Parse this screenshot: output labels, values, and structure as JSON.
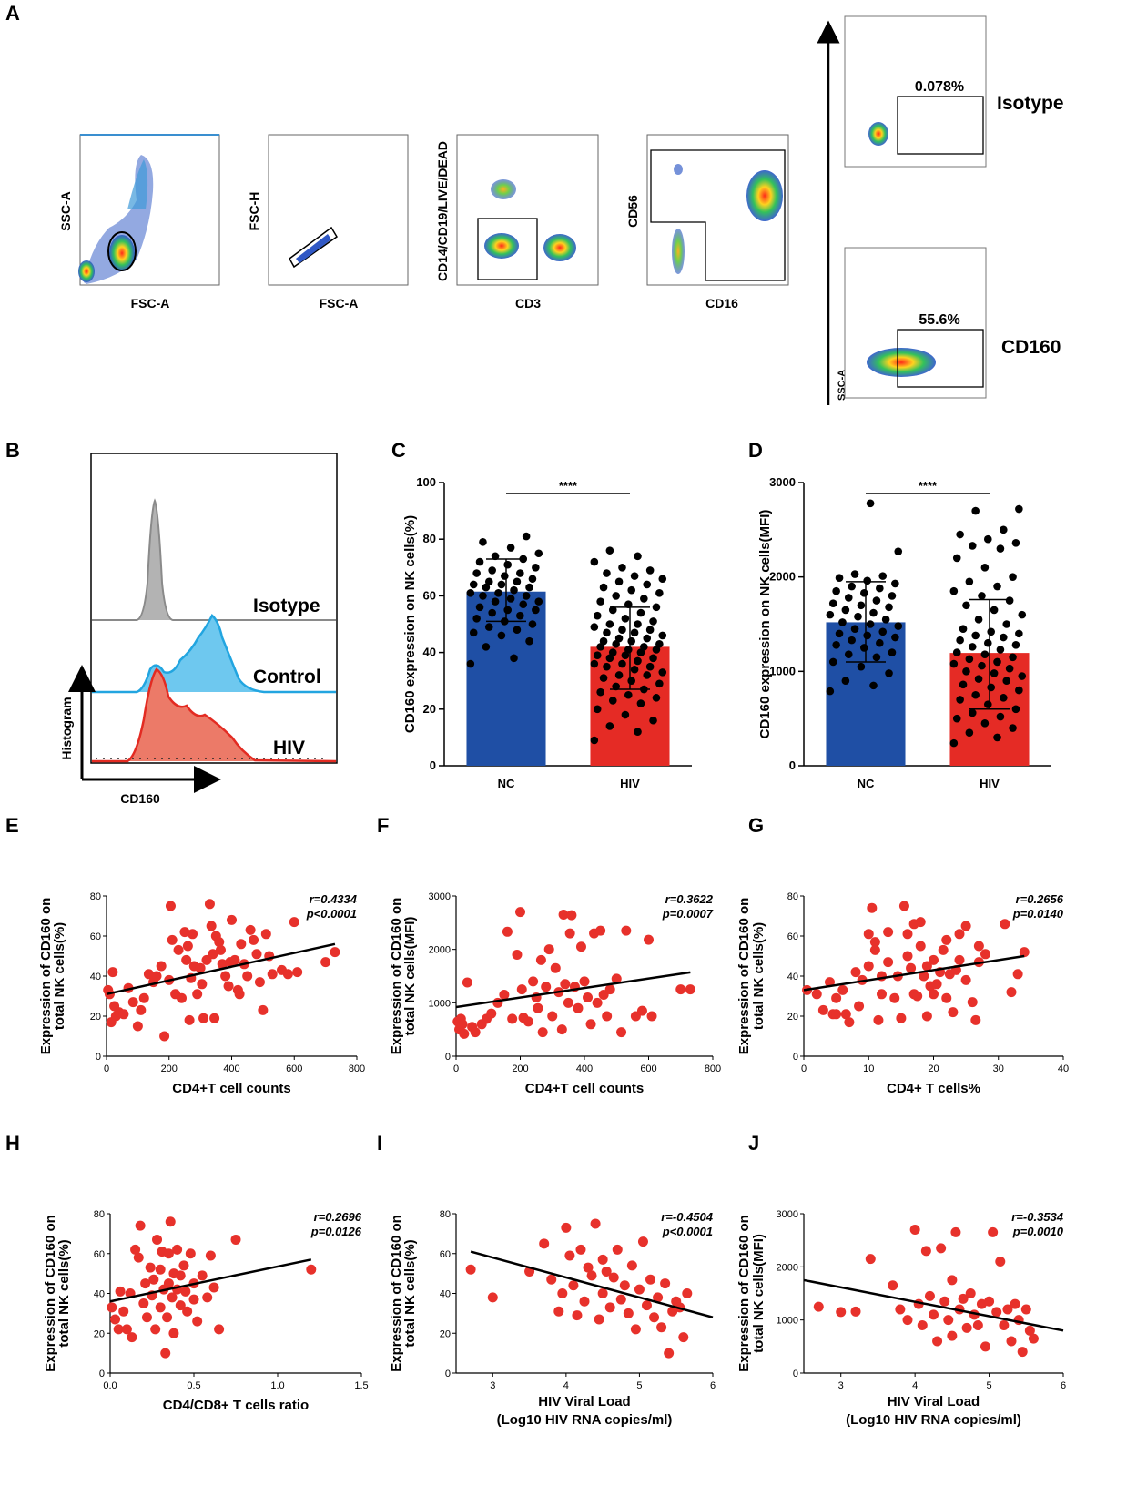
{
  "panel_labels": {
    "A": "A",
    "B": "B",
    "C": "C",
    "D": "D",
    "E": "E",
    "F": "F",
    "G": "G",
    "H": "H",
    "I": "I",
    "J": "J"
  },
  "flow": {
    "plots": [
      {
        "x_label": "FSC-A",
        "y_label": "SSC-A"
      },
      {
        "x_label": "FSC-A",
        "y_label": "FSC-H"
      },
      {
        "x_label": "CD3",
        "y_label": "CD14/CD19/LIVE/DEAD"
      },
      {
        "x_label": "CD16",
        "y_label": "CD56"
      }
    ],
    "gates": [
      {
        "name": "Isotype",
        "percent": "0.078%"
      },
      {
        "name": "CD160",
        "percent": "55.6%"
      }
    ],
    "ssc_label": "SSC-A"
  },
  "histogram": {
    "x_label": "CD160",
    "y_label": "Histogram",
    "tracks": [
      {
        "name": "Isotype",
        "color": "#9a9a9a"
      },
      {
        "name": "Control",
        "color": "#2aa7df"
      },
      {
        "name": "HIV",
        "color": "#e5493b"
      }
    ]
  },
  "chart_data": [
    {
      "id": "C",
      "type": "bar",
      "ylabel": "CD160 expression on NK cells(%)",
      "categories": [
        "NC",
        "HIV"
      ],
      "values": [
        61.5,
        42
      ],
      "sd_upper": [
        73,
        56
      ],
      "sd_lower": [
        51,
        27
      ],
      "ylim": [
        0,
        100
      ],
      "yticks": [
        0,
        20,
        40,
        60,
        80,
        100
      ],
      "significance": "****",
      "colors": [
        "#1f4fa5",
        "#e52b25"
      ],
      "points": [
        [
          36,
          38,
          42,
          44,
          46,
          47,
          48,
          49,
          50,
          51,
          52,
          53,
          54,
          55,
          55,
          56,
          57,
          58,
          58,
          59,
          60,
          60,
          61,
          61,
          62,
          63,
          63,
          64,
          64,
          65,
          65,
          66,
          67,
          68,
          68,
          69,
          70,
          71,
          72,
          73,
          74,
          75,
          77,
          79,
          81
        ],
        [
          9,
          12,
          14,
          16,
          18,
          20,
          22,
          23,
          24,
          25,
          26,
          27,
          28,
          29,
          30,
          31,
          32,
          32,
          33,
          34,
          35,
          35,
          36,
          36,
          37,
          38,
          38,
          39,
          39,
          40,
          40,
          41,
          41,
          42,
          42,
          43,
          43,
          44,
          44,
          45,
          45,
          46,
          47,
          47,
          48,
          48,
          49,
          50,
          50,
          51,
          52,
          53,
          54,
          55,
          56,
          57,
          58,
          59,
          60,
          61,
          62,
          63,
          64,
          65,
          66,
          67,
          68,
          69,
          70,
          72,
          74,
          76
        ]
      ]
    },
    {
      "id": "D",
      "type": "bar",
      "ylabel": "CD160 expression on NK cells(MFI)",
      "categories": [
        "NC",
        "HIV"
      ],
      "values": [
        1520,
        1195
      ],
      "sd_upper": [
        1950,
        1760
      ],
      "sd_lower": [
        1100,
        600
      ],
      "ylim": [
        0,
        3000
      ],
      "yticks": [
        0,
        1000,
        2000,
        3000
      ],
      "significance": "****",
      "colors": [
        "#1f4fa5",
        "#e52b25"
      ],
      "points": [
        [
          790,
          850,
          900,
          980,
          1050,
          1100,
          1150,
          1180,
          1200,
          1250,
          1280,
          1300,
          1330,
          1360,
          1380,
          1400,
          1420,
          1450,
          1480,
          1500,
          1520,
          1550,
          1580,
          1600,
          1620,
          1650,
          1680,
          1700,
          1720,
          1750,
          1780,
          1800,
          1830,
          1850,
          1880,
          1900,
          1930,
          1960,
          1990,
          2010,
          2030,
          2270,
          2780
        ],
        [
          240,
          300,
          350,
          400,
          450,
          500,
          520,
          560,
          600,
          650,
          700,
          720,
          750,
          800,
          830,
          860,
          900,
          920,
          950,
          980,
          1000,
          1030,
          1060,
          1080,
          1100,
          1130,
          1150,
          1180,
          1200,
          1230,
          1260,
          1280,
          1300,
          1330,
          1360,
          1380,
          1400,
          1420,
          1450,
          1500,
          1550,
          1600,
          1650,
          1700,
          1750,
          1800,
          1850,
          1900,
          1950,
          2000,
          2100,
          2200,
          2300,
          2330,
          2360,
          2400,
          2450,
          2500,
          2700,
          2720
        ]
      ]
    },
    {
      "id": "E",
      "type": "scatter",
      "xlabel": "CD4+T cell counts",
      "ylabel": [
        "Expression of CD160 on",
        "total NK cells(%)"
      ],
      "xlim": [
        0,
        800
      ],
      "ylim": [
        0,
        80
      ],
      "xticks": [
        0,
        200,
        400,
        600,
        800
      ],
      "yticks": [
        0,
        20,
        40,
        60,
        80
      ],
      "r": "r=0.4334",
      "p": "p<0.0001",
      "fit": [
        [
          0,
          31
        ],
        [
          730,
          56
        ]
      ],
      "x": [
        5,
        10,
        15,
        20,
        25,
        30,
        40,
        55,
        70,
        85,
        100,
        110,
        120,
        135,
        150,
        160,
        175,
        185,
        200,
        205,
        210,
        220,
        230,
        240,
        250,
        255,
        260,
        265,
        270,
        275,
        280,
        290,
        300,
        305,
        310,
        320,
        330,
        335,
        340,
        345,
        350,
        360,
        365,
        370,
        380,
        390,
        395,
        400,
        410,
        420,
        425,
        430,
        440,
        450,
        460,
        470,
        480,
        490,
        500,
        510,
        520,
        530,
        560,
        580,
        600,
        610,
        700,
        730
      ],
      "y": [
        33,
        31,
        17,
        42,
        25,
        20,
        22,
        21,
        34,
        27,
        15,
        23,
        29,
        41,
        37,
        40,
        45,
        10,
        38,
        75,
        58,
        31,
        53,
        29,
        62,
        48,
        55,
        18,
        39,
        61,
        45,
        31,
        44,
        36,
        19,
        48,
        76,
        65,
        51,
        19,
        60,
        57,
        53,
        46,
        40,
        35,
        47,
        68,
        48,
        33,
        31,
        56,
        46,
        40,
        63,
        58,
        51,
        37,
        23,
        61,
        50,
        41,
        43,
        41,
        67,
        42,
        47,
        52
      ]
    },
    {
      "id": "F",
      "type": "scatter",
      "xlabel": "CD4+T cell counts",
      "ylabel": [
        "Expression of CD160 on",
        "total NK cells(MFI)"
      ],
      "xlim": [
        0,
        800
      ],
      "ylim": [
        0,
        3000
      ],
      "xticks": [
        0,
        200,
        400,
        600,
        800
      ],
      "yticks": [
        0,
        1000,
        2000,
        3000
      ],
      "r": "r=0.3622",
      "p": "p=0.0007",
      "fit": [
        [
          0,
          920
        ],
        [
          730,
          1570
        ]
      ],
      "x": [
        5,
        10,
        15,
        20,
        25,
        35,
        50,
        60,
        80,
        95,
        110,
        130,
        150,
        160,
        175,
        190,
        200,
        205,
        210,
        225,
        240,
        250,
        255,
        265,
        270,
        280,
        290,
        300,
        310,
        320,
        330,
        335,
        340,
        350,
        355,
        360,
        370,
        380,
        390,
        400,
        410,
        420,
        430,
        440,
        450,
        460,
        470,
        480,
        500,
        515,
        530,
        560,
        580,
        600,
        610,
        700,
        730
      ],
      "y": [
        650,
        500,
        700,
        600,
        420,
        1380,
        550,
        450,
        600,
        700,
        800,
        1000,
        1150,
        2330,
        700,
        1900,
        2700,
        1250,
        720,
        650,
        1400,
        1100,
        900,
        1800,
        450,
        1300,
        2000,
        750,
        1650,
        1200,
        500,
        2650,
        1350,
        1000,
        2300,
        2640,
        1300,
        900,
        2050,
        1400,
        1100,
        600,
        2300,
        1000,
        2350,
        1150,
        750,
        1250,
        1450,
        450,
        2350,
        750,
        850,
        2180,
        750,
        1250,
        1250
      ]
    },
    {
      "id": "G",
      "type": "scatter",
      "xlabel": "CD4+ T cells%",
      "ylabel": [
        "Expression of CD160 on",
        "total NK cells(%)"
      ],
      "xlim": [
        0,
        40
      ],
      "ylim": [
        0,
        80
      ],
      "xticks": [
        0,
        10,
        20,
        30,
        40
      ],
      "yticks": [
        0,
        20,
        40,
        60,
        80
      ],
      "r": "r=0.2656",
      "p": "p=0.0140",
      "fit": [
        [
          0,
          33
        ],
        [
          34,
          50
        ]
      ],
      "x": [
        0.5,
        2,
        3,
        4,
        4.5,
        5,
        5,
        6,
        6.5,
        7,
        8,
        8.5,
        9,
        10,
        10,
        10.5,
        11,
        11,
        11.5,
        12,
        12,
        13,
        13,
        14,
        14.5,
        15,
        15.5,
        16,
        16,
        16.5,
        17,
        17,
        17.5,
        18,
        18,
        18.5,
        19,
        19,
        19.5,
        20,
        20,
        20.5,
        21,
        21.5,
        22,
        22,
        22.5,
        23,
        23.5,
        24,
        24,
        25,
        25,
        26,
        26.5,
        27,
        27,
        28,
        31,
        32,
        33,
        34
      ],
      "y": [
        33,
        31,
        23,
        37,
        21,
        29,
        21,
        33,
        21,
        17,
        42,
        25,
        38,
        45,
        61,
        74,
        57,
        53,
        18,
        40,
        31,
        62,
        47,
        29,
        40,
        19,
        75,
        61,
        50,
        44,
        66,
        31,
        30,
        55,
        67,
        40,
        20,
        45,
        35,
        48,
        31,
        36,
        42,
        53,
        29,
        58,
        41,
        22,
        43,
        61,
        48,
        38,
        65,
        27,
        18,
        55,
        47,
        51,
        66,
        32,
        41,
        52
      ]
    },
    {
      "id": "H",
      "type": "scatter",
      "xlabel": "CD4/CD8+ T cells ratio",
      "ylabel": [
        "Expression of CD160 on",
        "total NK cells(%)"
      ],
      "xlim": [
        0,
        1.5
      ],
      "ylim": [
        0,
        80
      ],
      "xticks": [
        0,
        0.5,
        1,
        1.5
      ],
      "xtick_labels": [
        "0.0",
        "0.5",
        "1.0",
        "1.5"
      ],
      "yticks": [
        0,
        20,
        40,
        60,
        80
      ],
      "r": "r=0.2696",
      "p": "p=0.0126",
      "fit": [
        [
          0,
          36
        ],
        [
          1.2,
          57
        ]
      ],
      "x": [
        0.01,
        0.03,
        0.05,
        0.06,
        0.08,
        0.1,
        0.12,
        0.13,
        0.15,
        0.17,
        0.18,
        0.2,
        0.21,
        0.22,
        0.24,
        0.25,
        0.26,
        0.27,
        0.28,
        0.3,
        0.3,
        0.31,
        0.32,
        0.33,
        0.34,
        0.35,
        0.35,
        0.36,
        0.37,
        0.38,
        0.38,
        0.4,
        0.4,
        0.42,
        0.42,
        0.44,
        0.45,
        0.46,
        0.48,
        0.5,
        0.5,
        0.52,
        0.55,
        0.58,
        0.6,
        0.62,
        0.65,
        0.75,
        1.2
      ],
      "y": [
        33,
        27,
        22,
        41,
        31,
        22,
        40,
        18,
        62,
        58,
        74,
        35,
        45,
        28,
        53,
        39,
        47,
        22,
        67,
        52,
        33,
        61,
        42,
        10,
        28,
        60,
        45,
        76,
        38,
        50,
        20,
        62,
        42,
        49,
        34,
        54,
        41,
        31,
        60,
        45,
        37,
        26,
        49,
        38,
        59,
        43,
        22,
        67,
        52
      ]
    },
    {
      "id": "I",
      "type": "scatter",
      "xlabel": [
        "HIV Viral Load",
        "(Log10 HIV RNA copies/ml)"
      ],
      "ylabel": [
        "Expression of CD160 on",
        "total NK cells(%)"
      ],
      "xlim": [
        2.5,
        6
      ],
      "ylim": [
        0,
        80
      ],
      "xticks": [
        3,
        4,
        5,
        6
      ],
      "yticks": [
        0,
        20,
        40,
        60,
        80
      ],
      "r": "r=-0.4504",
      "p": "p<0.0001",
      "fit": [
        [
          2.7,
          61
        ],
        [
          6,
          28
        ]
      ],
      "x": [
        2.7,
        3,
        3.5,
        3.7,
        3.8,
        3.9,
        3.95,
        4,
        4.05,
        4.1,
        4.15,
        4.2,
        4.25,
        4.3,
        4.35,
        4.4,
        4.45,
        4.5,
        4.5,
        4.55,
        4.6,
        4.65,
        4.7,
        4.75,
        4.8,
        4.85,
        4.9,
        4.95,
        5,
        5.05,
        5.1,
        5.15,
        5.2,
        5.25,
        5.3,
        5.35,
        5.4,
        5.45,
        5.5,
        5.55,
        5.6,
        5.65
      ],
      "y": [
        52,
        38,
        51,
        65,
        47,
        31,
        40,
        73,
        59,
        44,
        29,
        62,
        36,
        53,
        49,
        75,
        27,
        57,
        40,
        51,
        33,
        48,
        62,
        37,
        44,
        30,
        54,
        22,
        42,
        66,
        34,
        47,
        28,
        38,
        23,
        45,
        10,
        31,
        36,
        33,
        18,
        40
      ]
    },
    {
      "id": "J",
      "type": "scatter",
      "xlabel": [
        "HIV Viral Load",
        "(Log10 HIV RNA copies/ml)"
      ],
      "ylabel": [
        "Expression of CD160 on",
        "total NK cells(MFI)"
      ],
      "xlim": [
        2.5,
        6
      ],
      "ylim": [
        0,
        3000
      ],
      "xticks": [
        3,
        4,
        5,
        6
      ],
      "yticks": [
        0,
        1000,
        2000,
        3000
      ],
      "r": "r=-0.3534",
      "p": "p=0.0010",
      "fit": [
        [
          2.5,
          1750
        ],
        [
          6,
          800
        ]
      ],
      "x": [
        2.7,
        3,
        3.2,
        3.4,
        3.7,
        3.8,
        3.9,
        4,
        4.05,
        4.1,
        4.15,
        4.2,
        4.25,
        4.3,
        4.35,
        4.4,
        4.45,
        4.5,
        4.5,
        4.55,
        4.6,
        4.65,
        4.7,
        4.75,
        4.8,
        4.85,
        4.9,
        4.95,
        5,
        5.05,
        5.1,
        5.15,
        5.2,
        5.25,
        5.3,
        5.35,
        5.4,
        5.45,
        5.5,
        5.55,
        5.6
      ],
      "y": [
        1250,
        1150,
        1160,
        2150,
        1650,
        1200,
        1000,
        2700,
        1300,
        900,
        2300,
        1450,
        1100,
        600,
        2350,
        1350,
        1000,
        1750,
        700,
        2650,
        1200,
        1400,
        850,
        1500,
        1100,
        900,
        1300,
        500,
        1350,
        2650,
        1150,
        2100,
        900,
        1200,
        600,
        1300,
        1000,
        400,
        1200,
        800,
        650
      ]
    }
  ]
}
